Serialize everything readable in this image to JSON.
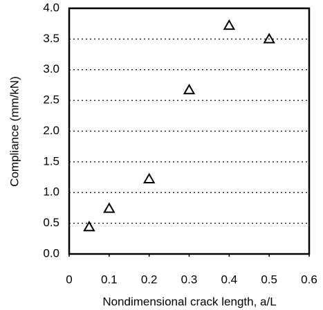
{
  "chart_data": {
    "type": "scatter",
    "x_label": "Nondimensional crack length, a/L",
    "y_label": "Compliance (mm/kN)",
    "series": [
      {
        "marker": "triangle-open",
        "color": "#000000",
        "x": [
          0.05,
          0.1,
          0.2,
          0.3,
          0.4,
          0.5
        ],
        "values": [
          0.44,
          0.74,
          1.22,
          2.67,
          3.72,
          3.5
        ]
      }
    ],
    "xlim": [
      0,
      0.6
    ],
    "xticks": [
      0,
      0.1,
      0.2,
      0.3,
      0.4,
      0.5,
      0.6
    ],
    "ylim": [
      0,
      4
    ],
    "yticks": [
      {
        "value": 0,
        "label": "0.0"
      },
      0.5,
      {
        "value": 1,
        "label": "1.0"
      },
      1.5,
      {
        "value": 2,
        "label": "2.0"
      },
      2.5,
      {
        "value": 3,
        "label": "3.0"
      },
      3.5,
      {
        "value": 4,
        "label": "4.0"
      }
    ],
    "grid": "y-dotted"
  }
}
